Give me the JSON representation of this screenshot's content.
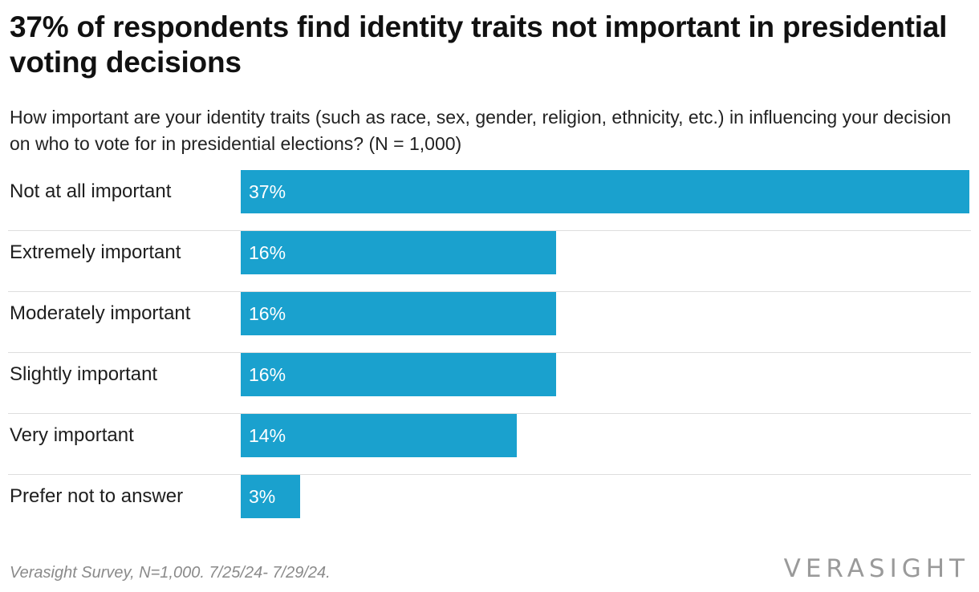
{
  "title": "37% of respondents find identity traits not important in presidential voting decisions",
  "subtitle": "How important are your identity traits (such as race, sex, gender, religion, ethnicity, etc.) in influencing your decision on who to vote for in presidential elections? (N = 1,000)",
  "footer": {
    "source_note": "Verasight Survey, N=1,000. 7/25/24- 7/29/24.",
    "logo_text": "VERASIGHT"
  },
  "colors": {
    "bar": "#1aa1ce",
    "bar_label": "#ffffff",
    "divider": "#dedede",
    "footer_text": "#8a8a8a"
  },
  "chart_data": {
    "type": "bar",
    "orientation": "horizontal",
    "categories": [
      "Not at all important",
      "Extremely important",
      "Moderately important",
      "Slightly important",
      "Very important",
      "Prefer not to answer"
    ],
    "values": [
      37,
      16,
      16,
      16,
      14,
      3
    ],
    "value_labels": [
      "37%",
      "16%",
      "16%",
      "16%",
      "14%",
      "3%"
    ],
    "unit": "%",
    "xlim": [
      0,
      37
    ],
    "grid": false,
    "legend": "none"
  }
}
